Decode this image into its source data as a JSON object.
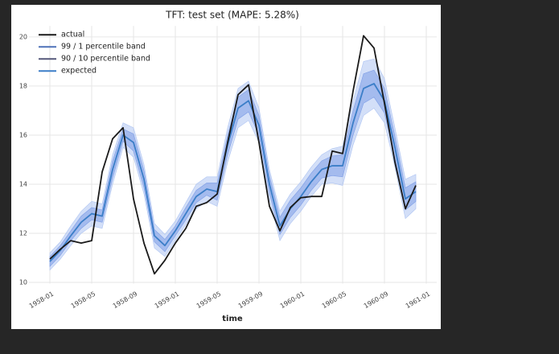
{
  "chart_data": {
    "type": "line",
    "title": "TFT: test set (MAPE: 5.28%)",
    "x_label": "time",
    "x": [
      "1958-01",
      "1958-02",
      "1958-03",
      "1958-04",
      "1958-05",
      "1958-06",
      "1958-07",
      "1958-08",
      "1958-09",
      "1958-10",
      "1958-11",
      "1958-12",
      "1959-01",
      "1959-02",
      "1959-03",
      "1959-04",
      "1959-05",
      "1959-06",
      "1959-07",
      "1959-08",
      "1959-09",
      "1959-10",
      "1959-11",
      "1959-12",
      "1960-01",
      "1960-02",
      "1960-03",
      "1960-04",
      "1960-05",
      "1960-06",
      "1960-07",
      "1960-08",
      "1960-09",
      "1960-10",
      "1960-11",
      "1960-12"
    ],
    "xlim": [
      "1957-11",
      "1961-02"
    ],
    "xticks": [
      "1958-01",
      "1958-05",
      "1958-09",
      "1959-01",
      "1959-05",
      "1959-09",
      "1960-01",
      "1960-05",
      "1960-09",
      "1961-01"
    ],
    "ylim": [
      9.95,
      20.45
    ],
    "yticks": [
      10,
      12,
      14,
      16,
      18,
      20
    ],
    "grid": true,
    "legend": "upper left",
    "bands": [
      {
        "name": "99 / 1 percentile band",
        "color": "#4f72b8",
        "fill": "#aec4f2",
        "lower": [
          10.5,
          10.95,
          11.5,
          12.0,
          12.3,
          12.2,
          14.0,
          15.5,
          15.1,
          13.6,
          11.4,
          11.05,
          11.7,
          12.35,
          13.0,
          13.3,
          13.1,
          14.9,
          16.3,
          16.6,
          15.7,
          13.4,
          11.7,
          12.4,
          12.9,
          13.5,
          14.0,
          14.05,
          13.95,
          15.6,
          16.8,
          17.1,
          16.5,
          14.7,
          12.6,
          13.0
        ],
        "upper": [
          11.2,
          11.65,
          12.3,
          12.9,
          13.3,
          13.2,
          15.2,
          16.5,
          16.3,
          14.8,
          12.4,
          11.95,
          12.5,
          13.25,
          14.0,
          14.3,
          14.3,
          16.3,
          17.9,
          18.2,
          17.1,
          14.6,
          12.9,
          13.6,
          14.1,
          14.7,
          15.2,
          15.45,
          15.55,
          17.4,
          19.0,
          19.1,
          18.3,
          16.3,
          14.2,
          14.4
        ]
      },
      {
        "name": "90 / 10 percentile band",
        "color": "#55587a",
        "fill": "#7d9de6",
        "lower": [
          10.65,
          11.1,
          11.7,
          12.2,
          12.55,
          12.45,
          14.25,
          15.75,
          15.35,
          13.85,
          11.65,
          11.25,
          11.9,
          12.55,
          13.25,
          13.55,
          13.35,
          15.2,
          16.65,
          16.95,
          16.0,
          13.65,
          11.95,
          12.65,
          13.15,
          13.75,
          14.25,
          14.35,
          14.3,
          16.0,
          17.3,
          17.55,
          16.9,
          15.05,
          12.95,
          13.3
        ],
        "upper": [
          11.05,
          11.5,
          12.1,
          12.7,
          13.05,
          12.95,
          14.95,
          16.25,
          16.05,
          14.55,
          12.15,
          11.75,
          12.3,
          13.05,
          13.75,
          14.05,
          14.05,
          16.0,
          17.55,
          17.85,
          16.8,
          14.35,
          12.65,
          13.35,
          13.85,
          14.45,
          14.95,
          15.15,
          15.2,
          17.0,
          18.5,
          18.65,
          17.9,
          15.95,
          13.85,
          14.1
        ]
      }
    ],
    "series": [
      {
        "name": "actual",
        "color": "#1a1a1a",
        "values": [
          10.95,
          11.35,
          11.7,
          11.6,
          11.7,
          14.5,
          15.85,
          16.3,
          13.4,
          11.6,
          10.35,
          10.9,
          11.6,
          12.2,
          13.1,
          13.25,
          13.6,
          15.7,
          17.65,
          18.05,
          15.7,
          13.1,
          12.1,
          13.05,
          13.45,
          13.5,
          13.5,
          15.35,
          15.25,
          17.8,
          20.05,
          19.55,
          17.3,
          14.9,
          13.0,
          13.95
        ]
      },
      {
        "name": "expected",
        "color": "#3b7ec8",
        "values": [
          10.85,
          11.3,
          11.9,
          12.45,
          12.8,
          12.7,
          14.6,
          16.0,
          15.7,
          14.2,
          11.9,
          11.5,
          12.1,
          12.8,
          13.5,
          13.8,
          13.7,
          15.6,
          17.1,
          17.4,
          16.4,
          14.0,
          12.3,
          13.0,
          13.5,
          14.1,
          14.6,
          14.75,
          14.75,
          16.5,
          17.9,
          18.1,
          17.4,
          15.5,
          13.4,
          13.7
        ]
      }
    ]
  }
}
